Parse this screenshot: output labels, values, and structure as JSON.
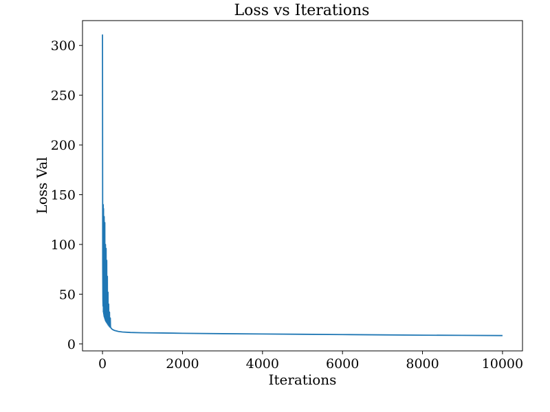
{
  "chart_data": {
    "type": "line",
    "title": "Loss vs Iterations",
    "xlabel": "Iterations",
    "ylabel": "Loss Val",
    "xlim": [
      -500,
      10500
    ],
    "ylim": [
      -7,
      325
    ],
    "x_ticks": [
      0,
      2000,
      4000,
      6000,
      8000,
      10000
    ],
    "y_ticks": [
      0,
      50,
      100,
      150,
      200,
      250,
      300
    ],
    "grid": false,
    "legend": "none",
    "line_color": "#1f77b4",
    "series": [
      {
        "x": [
          0,
          5,
          10,
          14,
          18,
          22,
          26,
          30,
          34,
          38,
          42,
          46,
          50,
          54,
          58,
          62,
          66,
          70,
          74,
          78,
          82,
          86,
          90,
          94,
          98,
          102,
          106,
          110,
          114,
          118,
          122,
          126,
          130,
          134,
          138,
          142,
          146,
          150,
          155,
          160,
          165,
          170,
          175,
          180,
          185,
          190,
          195,
          200,
          220,
          250,
          300,
          400,
          500,
          700,
          1000,
          1500,
          2000,
          3000,
          4000,
          5000,
          6000,
          7000,
          8000,
          9000,
          10000
        ],
        "y": [
          311,
          80,
          45,
          38,
          140,
          32,
          136,
          30,
          90,
          28,
          128,
          27,
          60,
          26,
          122,
          25,
          70,
          24,
          100,
          23,
          45,
          23,
          96,
          22,
          40,
          22,
          84,
          21,
          35,
          21,
          68,
          20,
          30,
          20,
          52,
          19,
          28,
          19,
          40,
          18,
          26,
          18,
          32,
          17,
          24,
          17,
          26,
          17,
          15.5,
          14.5,
          13.5,
          12.5,
          12,
          11.5,
          11.2,
          11,
          10.7,
          10.3,
          10,
          9.7,
          9.4,
          9.1,
          8.8,
          8.6,
          8.4
        ]
      }
    ]
  }
}
